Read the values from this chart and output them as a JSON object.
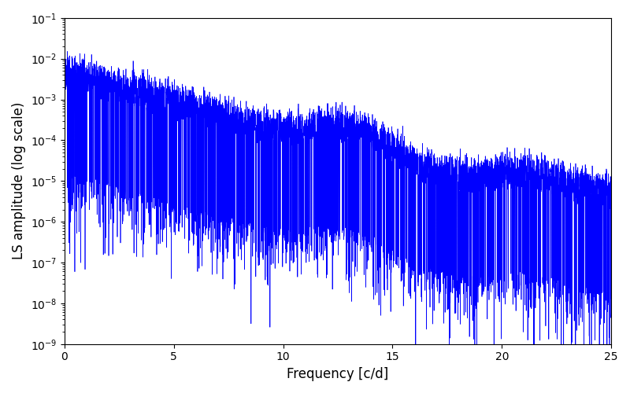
{
  "title": "",
  "xlabel": "Frequency [c/d]",
  "ylabel": "LS amplitude (log scale)",
  "line_color": "#0000ff",
  "xlim": [
    0,
    25
  ],
  "ylim_log": [
    -9,
    -1
  ],
  "background_color": "#ffffff",
  "figsize": [
    8.0,
    5.0
  ],
  "dpi": 100,
  "freq_max": 25.0,
  "n_points": 5000,
  "seed": 42
}
